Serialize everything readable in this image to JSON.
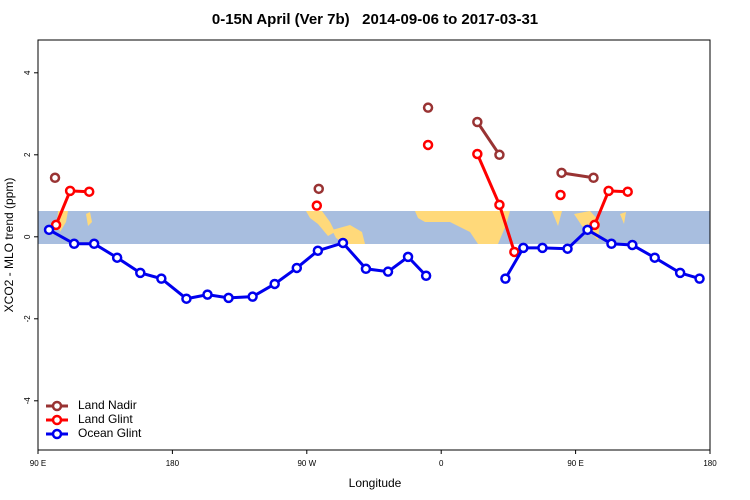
{
  "chart_data": {
    "type": "line",
    "title": "0-15N April (Ver 7b)   2014-09-06 to 2017-03-31",
    "xlabel": "Longitude",
    "ylabel": "XCO2 - MLO trend (ppm)",
    "xlim": [
      90,
      540
    ],
    "ylim": [
      -5.2,
      4.8
    ],
    "xticks": [
      {
        "value": 90,
        "label": "90 E"
      },
      180,
      {
        "value": 270,
        "label": "90 W"
      },
      {
        "value": 360,
        "label": "0"
      },
      {
        "value": 450,
        "label": "90 E"
      },
      {
        "value": 540,
        "label": "180"
      }
    ],
    "yticks": [
      -4,
      -2,
      0,
      2,
      4
    ],
    "legend": "bottom-left",
    "series": [
      {
        "name": "Land Nadir",
        "color": "#993333",
        "x": [
          101.4,
          190,
          278,
          315,
          351.2,
          370,
          384.2,
          399,
          420,
          440.6,
          462
        ],
        "values": [
          1.44,
          null,
          1.17,
          null,
          3.15,
          null,
          2.8,
          2.0,
          null,
          1.56,
          1.44
        ]
      },
      {
        "name": "Land Glint",
        "color": "#ff0000",
        "x": [
          102.1,
          111.5,
          124.3,
          200,
          276.7,
          315,
          351.2,
          370,
          384.2,
          399,
          409,
          425,
          439.9,
          450,
          462.7,
          472.1,
          484.9
        ],
        "values": [
          0.29,
          1.12,
          1.1,
          null,
          0.76,
          null,
          2.24,
          null,
          2.02,
          0.78,
          -0.37,
          null,
          1.02,
          null,
          0.29,
          1.12,
          1.1
        ]
      },
      {
        "name": "Ocean Glint",
        "color": "#0000ee",
        "x": [
          97.4,
          114.2,
          127.6,
          143,
          158.5,
          172.6,
          189.4,
          203.5,
          217.6,
          233.7,
          248.5,
          263.3,
          277.4,
          294.2,
          309.6,
          324.4,
          337.8,
          349.9,
          376,
          403,
          415,
          427.8,
          444.6,
          458,
          474,
          488,
          503,
          520,
          533
        ],
        "values": [
          0.17,
          -0.17,
          -0.17,
          -0.51,
          -0.88,
          -1.02,
          -1.51,
          -1.41,
          -1.49,
          -1.46,
          -1.15,
          -0.76,
          -0.34,
          -0.15,
          -0.78,
          -0.85,
          -0.49,
          -0.95,
          null,
          -1.02,
          -0.27,
          -0.27,
          -0.29,
          0.17,
          -0.17,
          -0.2,
          -0.51,
          -0.88,
          -1.02
        ]
      }
    ]
  }
}
